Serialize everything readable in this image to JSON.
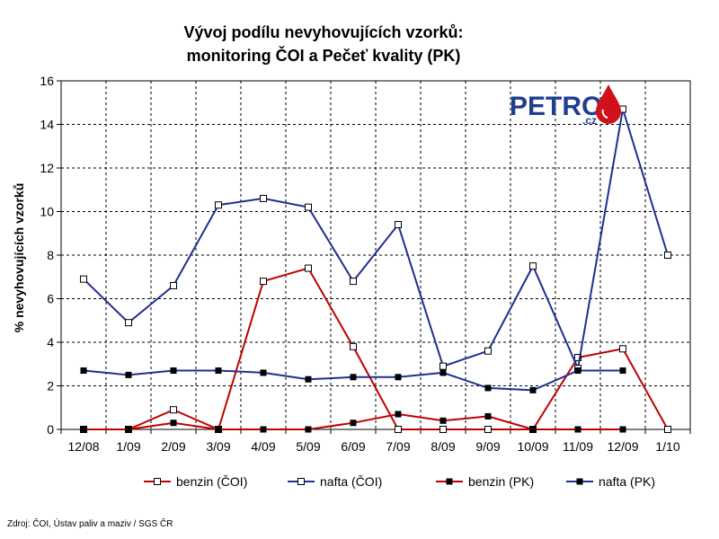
{
  "chart_data": {
    "type": "line",
    "title_lines": [
      "Vývoj podílu nevyhovujících vzorků:",
      "monitoring ČOI a Pečeť kvality (PK)"
    ],
    "xlabel": "",
    "ylabel": "% nevyhovujících vzorků",
    "categories": [
      "12/08",
      "1/09",
      "2/09",
      "3/09",
      "4/09",
      "5/09",
      "6/09",
      "7/09",
      "8/09",
      "9/09",
      "10/09",
      "11/09",
      "12/09",
      "1/10"
    ],
    "y_ticks": [
      "0",
      "2",
      "4",
      "6",
      "8",
      "10",
      "12",
      "14",
      "16"
    ],
    "ylim": [
      0,
      16
    ],
    "grid": true,
    "legend_position": "bottom",
    "series": [
      {
        "name": "benzin (ČOI)",
        "color": "#c00000",
        "marker": "open-square",
        "values": [
          0,
          0,
          0.9,
          0,
          6.8,
          7.4,
          3.8,
          0,
          0,
          0,
          0,
          3.3,
          3.7,
          0
        ]
      },
      {
        "name": "nafta (ČOI)",
        "color": "#1f2f8f",
        "marker": "open-square",
        "values": [
          6.9,
          4.9,
          6.6,
          10.3,
          10.6,
          10.2,
          6.8,
          9.4,
          2.9,
          3.6,
          7.5,
          2.8,
          14.7,
          8.0
        ]
      },
      {
        "name": "benzin (PK)",
        "color": "#c00000",
        "marker": "filled-square",
        "values": [
          0,
          0,
          0.3,
          0,
          0,
          0,
          0.3,
          0.7,
          0.4,
          0.6,
          0,
          0,
          0,
          null
        ]
      },
      {
        "name": "nafta (PK)",
        "color": "#1f2f8f",
        "marker": "filled-square",
        "values": [
          2.7,
          2.5,
          2.7,
          2.7,
          2.6,
          2.3,
          2.4,
          2.4,
          2.6,
          1.9,
          1.8,
          2.7,
          2.7,
          null
        ]
      }
    ],
    "source": "Zdroj: ČOI, Ústav paliv a maziv / SGS ČR",
    "logo": {
      "text": "PETROL",
      "suffix": ".cz",
      "icon": "oil-drop-icon"
    }
  }
}
